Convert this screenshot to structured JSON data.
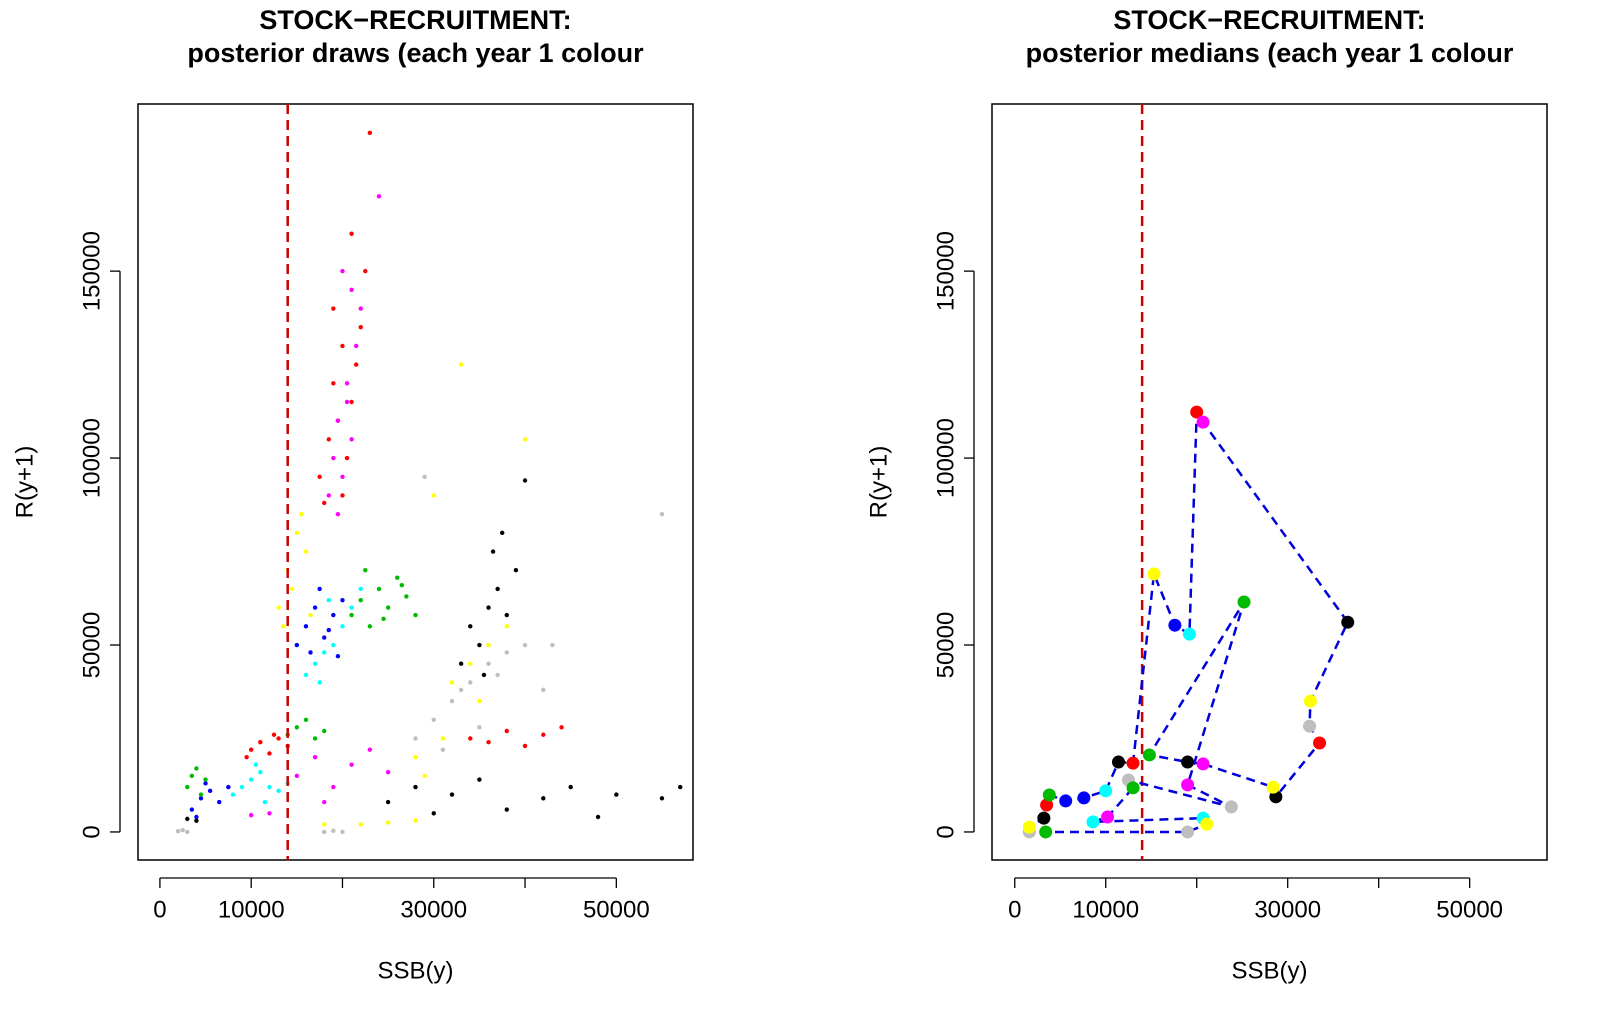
{
  "chart_data": [
    {
      "type": "scatter",
      "title": "STOCK−RECRUITMENT:",
      "subtitle": "posterior draws (each year 1 colour",
      "x_label": "SSB(y)",
      "y_label": "R(y+1)",
      "xlim": [
        -2400,
        58400
      ],
      "ylim": [
        -7500,
        194700
      ],
      "xticks": [
        0,
        10000,
        {
          "value": 20000,
          "label": null
        },
        30000,
        {
          "value": 40000,
          "label": null
        },
        50000
      ],
      "yticks": [
        0,
        50000,
        100000,
        150000
      ],
      "vline": {
        "x": 14000,
        "color": "#cc0000"
      },
      "series": [
        {
          "color": "#ff0000",
          "x": [
            17500,
            18500,
            19000,
            19500,
            20000,
            20500,
            21000,
            21500,
            22000,
            19000,
            20000,
            21000,
            23000,
            22500,
            18000,
            10000,
            11000,
            12000,
            13000,
            14000,
            9500,
            12500,
            34000,
            36000,
            38000,
            40000,
            42000,
            44000
          ],
          "values": [
            95000,
            105000,
            120000,
            110000,
            130000,
            100000,
            115000,
            125000,
            135000,
            140000,
            90000,
            160000,
            187000,
            150000,
            88000,
            22000,
            24000,
            21000,
            25000,
            23000,
            20000,
            26000,
            25000,
            24000,
            27000,
            23000,
            26000,
            28000
          ]
        },
        {
          "color": "#ff00ff",
          "x": [
            18500,
            19000,
            19500,
            20000,
            20500,
            21000,
            21500,
            22000,
            19500,
            20500,
            20000,
            21000,
            24000,
            15000,
            17000,
            19000,
            21000,
            23000,
            25000,
            18000,
            12000,
            10000
          ],
          "values": [
            90000,
            100000,
            110000,
            95000,
            120000,
            105000,
            130000,
            140000,
            85000,
            115000,
            150000,
            145000,
            170000,
            15000,
            20000,
            12000,
            18000,
            22000,
            16000,
            8000,
            5000,
            4500
          ]
        },
        {
          "color": "#ffff00",
          "x": [
            13000,
            14000,
            15000,
            16000,
            15500,
            14500,
            16500,
            13500,
            28000,
            30000,
            32000,
            34000,
            36000,
            38000,
            35000,
            31000,
            29000,
            40000,
            33000,
            22000,
            25000,
            28000,
            18000,
            30000
          ],
          "values": [
            60000,
            70000,
            80000,
            75000,
            85000,
            65000,
            58000,
            55000,
            20000,
            30000,
            40000,
            45000,
            50000,
            55000,
            35000,
            25000,
            15000,
            105000,
            125000,
            2000,
            2500,
            3000,
            2000,
            90000
          ]
        },
        {
          "color": "#0000ff",
          "x": [
            15000,
            16000,
            17000,
            18000,
            19000,
            20000,
            16500,
            17500,
            18500,
            19500,
            3500,
            4500,
            5500,
            6500,
            7500,
            5000,
            4000
          ],
          "values": [
            50000,
            55000,
            60000,
            52000,
            58000,
            62000,
            48000,
            65000,
            54000,
            47000,
            6000,
            9000,
            11000,
            8000,
            12000,
            13000,
            4000
          ]
        },
        {
          "color": "#00ffff",
          "x": [
            16000,
            17000,
            18000,
            19000,
            20000,
            21000,
            17500,
            18500,
            22000,
            8000,
            9000,
            10000,
            11000,
            12000,
            13000,
            10500,
            11500,
            14000
          ],
          "values": [
            42000,
            45000,
            48000,
            50000,
            55000,
            60000,
            40000,
            62000,
            65000,
            10000,
            12000,
            14000,
            16000,
            12000,
            11000,
            18000,
            8000,
            13000
          ]
        },
        {
          "color": "#00bb00",
          "x": [
            21000,
            22000,
            23000,
            24000,
            25000,
            26000,
            27000,
            28000,
            22500,
            24500,
            26500,
            3000,
            3500,
            4000,
            4500,
            5000,
            14000,
            15000,
            16000,
            17000,
            18000
          ],
          "values": [
            58000,
            62000,
            55000,
            65000,
            60000,
            68000,
            63000,
            58000,
            70000,
            57000,
            66000,
            12000,
            15000,
            17000,
            10000,
            14000,
            26000,
            28000,
            30000,
            25000,
            27000
          ]
        },
        {
          "color": "#000000",
          "x": [
            33000,
            34000,
            35000,
            36000,
            37000,
            38000,
            39000,
            35500,
            36500,
            37500,
            25000,
            28000,
            30000,
            32000,
            35000,
            38000,
            42000,
            45000,
            48000,
            50000,
            55000,
            57000,
            3000,
            4000,
            40000
          ],
          "values": [
            45000,
            55000,
            50000,
            60000,
            65000,
            58000,
            70000,
            42000,
            75000,
            80000,
            8000,
            12000,
            5000,
            10000,
            14000,
            6000,
            9000,
            12000,
            4000,
            10000,
            9000,
            12000,
            3500,
            3000,
            94000
          ]
        },
        {
          "color": "#bebebe",
          "x": [
            28000,
            30000,
            32000,
            34000,
            36000,
            38000,
            40000,
            31000,
            33000,
            35000,
            37000,
            29000,
            2000,
            2500,
            3000,
            18000,
            19000,
            20000,
            43000,
            55000,
            42000
          ],
          "values": [
            25000,
            30000,
            35000,
            40000,
            45000,
            48000,
            50000,
            22000,
            38000,
            28000,
            42000,
            95000,
            200,
            500,
            0,
            0,
            300,
            0,
            50000,
            85000,
            38000
          ]
        }
      ]
    },
    {
      "type": "scatter",
      "title": "STOCK−RECRUITMENT:",
      "subtitle": "posterior medians (each year 1 colour",
      "x_label": "SSB(y)",
      "y_label": "R(y+1)",
      "xlim": [
        -2500,
        58500
      ],
      "ylim": [
        -7500,
        194700
      ],
      "xticks": [
        0,
        10000,
        {
          "value": 20000,
          "label": null
        },
        30000,
        {
          "value": 40000,
          "label": null
        },
        50000
      ],
      "yticks": [
        0,
        50000,
        100000,
        150000
      ],
      "vline": {
        "x": 14000,
        "color": "#cc0000"
      },
      "line": {
        "color": "#0000dd"
      },
      "series": [
        {
          "colors": [
            "#bebebe",
            "#ffff00",
            "#000000",
            "#ff0000",
            "#00bb00",
            "#0000ff",
            "#0000ff",
            "#00ffff",
            "#000000",
            "#ff0000",
            "#ffff00",
            "#0000ff",
            "#00ffff",
            "#ff0000",
            "#ff00ff",
            "#000000",
            "#ffff00",
            "#bebebe",
            "#ff0000",
            "#000000",
            "#ffff00",
            "#ff00ff",
            "#000000",
            "#00bb00",
            "#00bb00",
            "#ff00ff",
            "#bebebe",
            "#bebebe",
            "#00bb00",
            "#ff00ff",
            "#00ffff",
            "#00ffff",
            "#ffff00",
            "#bebebe",
            "#00bb00"
          ],
          "x": [
            1600,
            1600,
            3200,
            3500,
            3800,
            5600,
            7600,
            10000,
            11400,
            13000,
            15300,
            17600,
            19200,
            20000,
            20700,
            36600,
            32500,
            32400,
            33500,
            28700,
            28400,
            20700,
            19000,
            14800,
            25200,
            19000,
            23800,
            12500,
            13000,
            10200,
            8600,
            20700,
            21100,
            19000,
            3400
          ],
          "values": [
            0,
            1300,
            3700,
            7200,
            9900,
            8300,
            9100,
            11000,
            18700,
            18400,
            69000,
            55300,
            52900,
            112300,
            109600,
            56100,
            35000,
            28300,
            23800,
            9400,
            12000,
            18200,
            18700,
            20600,
            61500,
            12600,
            6700,
            13900,
            11800,
            4000,
            2700,
            3700,
            2100,
            0,
            0
          ]
        }
      ]
    }
  ]
}
